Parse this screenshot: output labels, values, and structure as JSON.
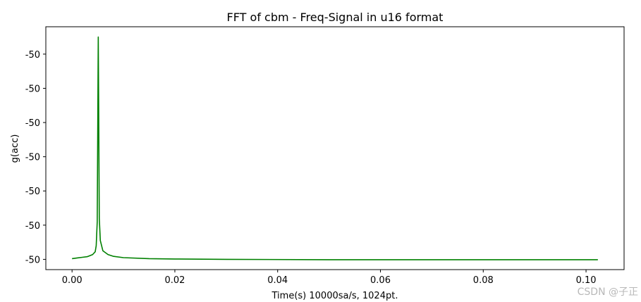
{
  "chart_data": {
    "type": "line",
    "title": "FFT of cbm - Freq-Signal in u16 format",
    "xlabel": "Time(s) 10000sa/s, 1024pt.",
    "ylabel": "g(acc)",
    "xlim": [
      -0.0051,
      0.1074
    ],
    "ylim": [
      0.0,
      7.1
    ],
    "x_ticks": [
      {
        "value": 0.0,
        "label": "0.00"
      },
      {
        "value": 0.02,
        "label": "0.02"
      },
      {
        "value": 0.04,
        "label": "0.04"
      },
      {
        "value": 0.06,
        "label": "0.06"
      },
      {
        "value": 0.08,
        "label": "0.08"
      },
      {
        "value": 0.1,
        "label": "0.10"
      }
    ],
    "y_ticks": [
      {
        "value": 0.3,
        "label": "-50"
      },
      {
        "value": 1.3,
        "label": "-50"
      },
      {
        "value": 2.3,
        "label": "-50"
      },
      {
        "value": 3.3,
        "label": "-50"
      },
      {
        "value": 4.3,
        "label": "-50"
      },
      {
        "value": 5.3,
        "label": "-50"
      },
      {
        "value": 6.3,
        "label": "-50"
      }
    ],
    "series": [
      {
        "color": "#008000",
        "x": [
          0.0,
          0.001,
          0.002,
          0.003,
          0.004,
          0.0045,
          0.0047,
          0.0049,
          0.00505,
          0.0051,
          0.00515,
          0.0053,
          0.0055,
          0.006,
          0.007,
          0.008,
          0.01,
          0.015,
          0.02,
          0.03,
          0.05,
          0.07,
          0.09,
          0.1023
        ],
        "y": [
          0.32,
          0.34,
          0.36,
          0.38,
          0.44,
          0.52,
          0.7,
          1.4,
          5.5,
          6.8,
          5.5,
          1.5,
          0.85,
          0.55,
          0.44,
          0.39,
          0.35,
          0.32,
          0.31,
          0.3,
          0.29,
          0.29,
          0.29,
          0.29
        ]
      }
    ]
  },
  "watermark": "CSDN @子正"
}
